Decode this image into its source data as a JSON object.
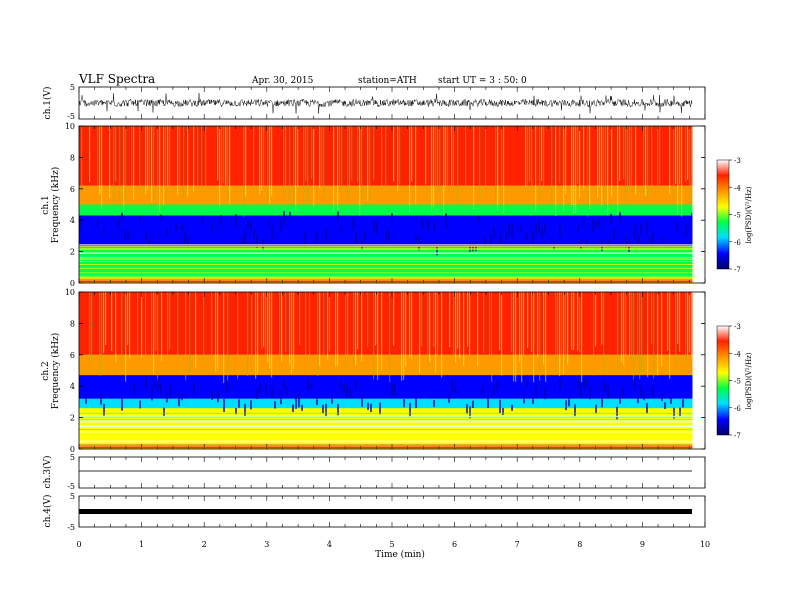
{
  "header": {
    "title": "VLF  Spectra",
    "date": "Apr. 30, 2015",
    "station": "station=ATH",
    "start": "start  UT  =  3 : 50: 0"
  },
  "chart_data": [
    {
      "type": "line",
      "panel": "ch1-waveform",
      "ylabel": "ch.1(V)",
      "ylim": [
        -5,
        5
      ],
      "yticks": [
        "5",
        "-5"
      ],
      "xlim": [
        0,
        10
      ],
      "data_end_min": 9.8,
      "note": "Dense noisy waveform centred near 0 V with amplitude about +/-1.5 V and sparse spikes to about +/-3 V"
    },
    {
      "type": "heatmap",
      "panel": "ch1-spectrogram",
      "ylabel_channel": "ch.1",
      "ylabel": "Frequency  (kHz)",
      "ylim": [
        0,
        10
      ],
      "yticks": [
        "0",
        "2",
        "4",
        "6",
        "8",
        "10"
      ],
      "xlim": [
        0,
        10
      ],
      "data_end_min": 9.8,
      "colorbar": {
        "label": "log(PSD)(V²/Hz)",
        "range": [
          -7,
          -3
        ],
        "ticks": [
          "-3",
          "-4",
          "-5",
          "-6",
          "-7"
        ],
        "colors": [
          "#ffffff",
          "#ff2200",
          "#ff9900",
          "#ffff00",
          "#00ff44",
          "#00ddff",
          "#0000ff",
          "#000066"
        ]
      },
      "bands": [
        {
          "from_khz": 6.2,
          "to_khz": 10,
          "log_psd": -3.6
        },
        {
          "from_khz": 5.0,
          "to_khz": 6.2,
          "log_psd": -4.3
        },
        {
          "from_khz": 4.3,
          "to_khz": 5.0,
          "log_psd": -5.1
        },
        {
          "from_khz": 2.3,
          "to_khz": 4.3,
          "log_psd": -6.2
        },
        {
          "from_khz": 0.3,
          "to_khz": 2.3,
          "log_psd": -5.4
        },
        {
          "from_khz": 0,
          "to_khz": 0.3,
          "log_psd": -4.0
        }
      ]
    },
    {
      "type": "heatmap",
      "panel": "ch2-spectrogram",
      "ylabel_channel": "ch.2",
      "ylabel": "Frequency  (kHz)",
      "ylim": [
        0,
        10
      ],
      "yticks": [
        "0",
        "2",
        "4",
        "6",
        "8",
        "10"
      ],
      "xlim": [
        0,
        10
      ],
      "data_end_min": 9.8,
      "colorbar": {
        "label": "log(PSD)(V²/Hz)",
        "range": [
          -7,
          -3
        ],
        "ticks": [
          "-3",
          "-4",
          "-5",
          "-6",
          "-7"
        ],
        "colors": [
          "#ffffff",
          "#ff2200",
          "#ff9900",
          "#ffff00",
          "#00ff44",
          "#00ddff",
          "#0000ff",
          "#000066"
        ]
      },
      "bands": [
        {
          "from_khz": 6.0,
          "to_khz": 10,
          "log_psd": -3.6
        },
        {
          "from_khz": 4.7,
          "to_khz": 6.0,
          "log_psd": -4.4
        },
        {
          "from_khz": 3.2,
          "to_khz": 4.7,
          "log_psd": -6.3
        },
        {
          "from_khz": 2.6,
          "to_khz": 3.2,
          "log_psd": -5.6
        },
        {
          "from_khz": 0.3,
          "to_khz": 2.6,
          "log_psd": -4.9
        },
        {
          "from_khz": 0,
          "to_khz": 0.3,
          "log_psd": -4.0
        }
      ]
    },
    {
      "type": "line",
      "panel": "ch3-waveform",
      "ylabel": "ch.3(V)",
      "ylim": [
        -5,
        5
      ],
      "yticks": [
        "5",
        "-5"
      ],
      "xlim": [
        0,
        10
      ],
      "data_end_min": 9.8,
      "level_v": 0,
      "note": "Nearly flat trace near 0 V"
    },
    {
      "type": "line",
      "panel": "ch4-waveform",
      "ylabel": "ch.4(V)",
      "ylim": [
        -5,
        5
      ],
      "yticks": [
        "5",
        "-5"
      ],
      "xlim": [
        0,
        10
      ],
      "data_end_min": 9.8,
      "level_v": 0,
      "note": "Thick saturated black band near 0 V"
    }
  ],
  "x_axis": {
    "label": "Time  (min)",
    "ticks": [
      "0",
      "1",
      "2",
      "3",
      "4",
      "5",
      "6",
      "7",
      "8",
      "9",
      "10"
    ]
  }
}
